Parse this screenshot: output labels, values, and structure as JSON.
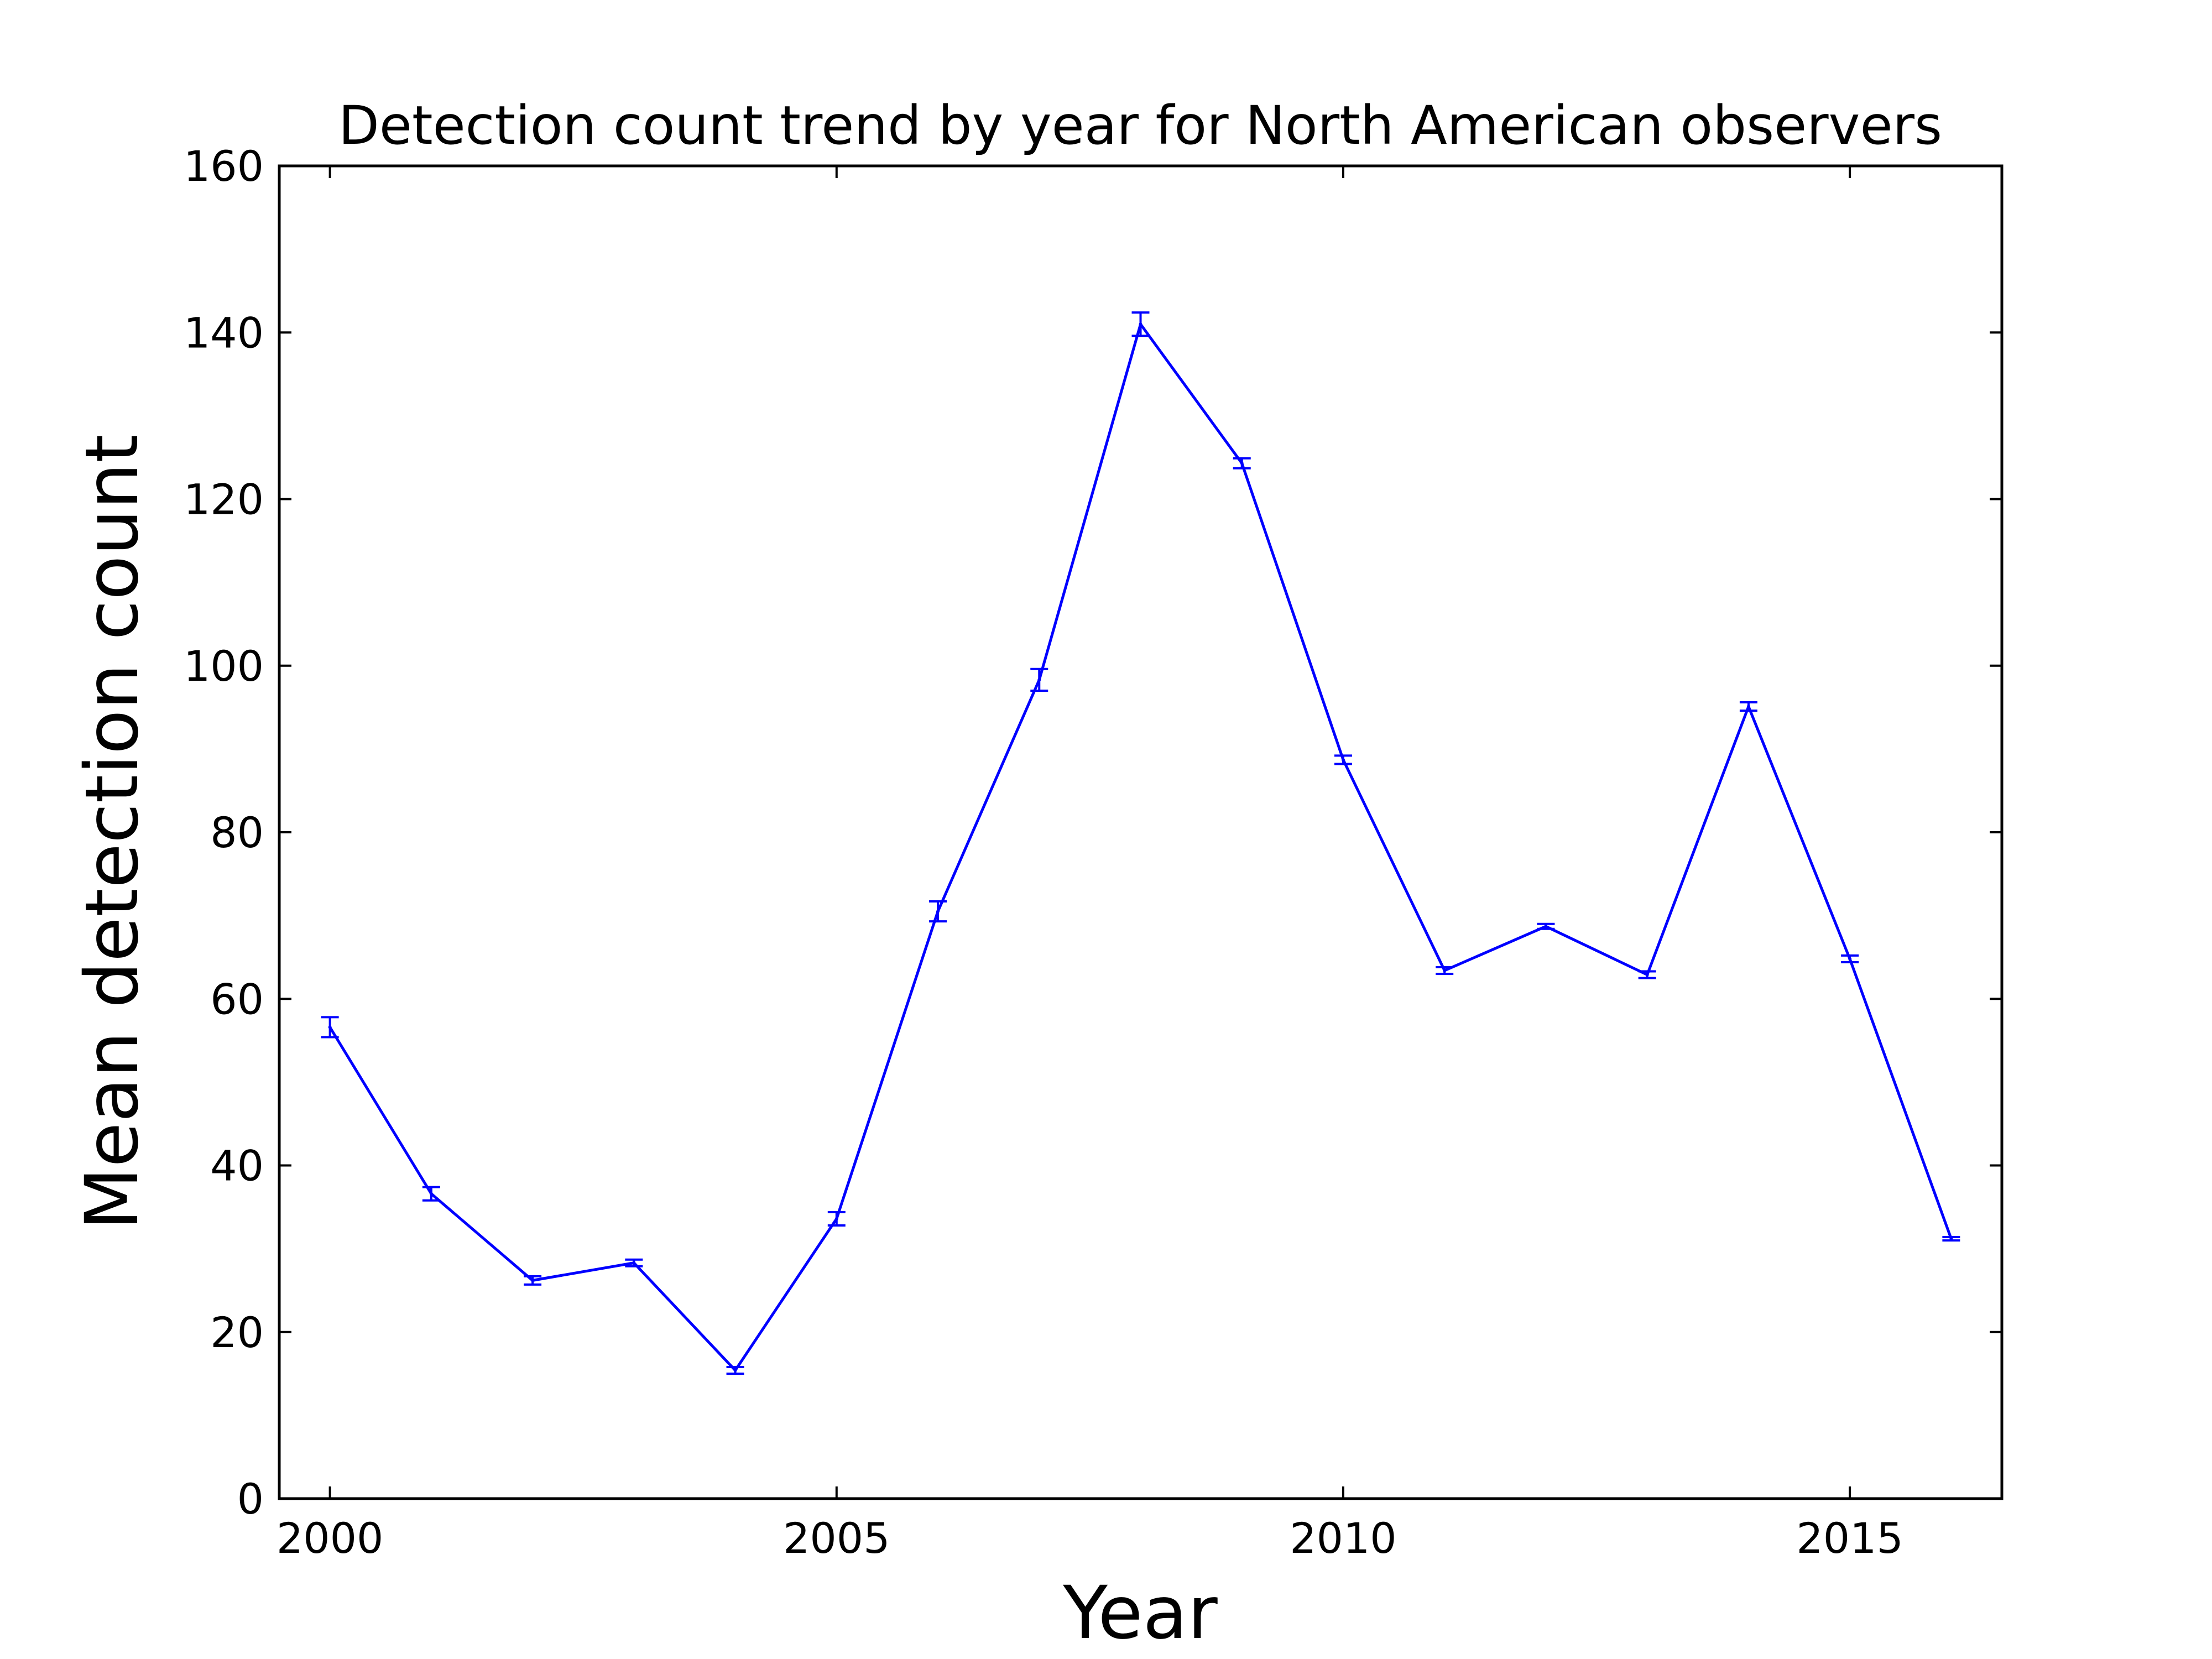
{
  "chart_data": {
    "type": "line",
    "title": "Detection count trend by year for North American observers",
    "xlabel": "Year",
    "ylabel": "Mean detection count",
    "xlim": [
      1999.5,
      2016.5
    ],
    "ylim": [
      0,
      160
    ],
    "x_ticks": [
      2000,
      2005,
      2010,
      2015
    ],
    "x_tick_labels": [
      "2000",
      "2005",
      "2010",
      "2015"
    ],
    "y_ticks": [
      0,
      20,
      40,
      60,
      80,
      100,
      120,
      140,
      160
    ],
    "y_tick_labels": [
      "0",
      "20",
      "40",
      "60",
      "80",
      "100",
      "120",
      "140",
      "160"
    ],
    "grid": false,
    "legend": "none",
    "line_color": "#0000ff",
    "series": [
      {
        "x": [
          2000,
          2001,
          2002,
          2003,
          2004,
          2005,
          2006,
          2007,
          2008,
          2009,
          2010,
          2011,
          2012,
          2013,
          2014,
          2015,
          2016
        ],
        "y": [
          56.6,
          36.6,
          26.2,
          28.3,
          15.4,
          33.6,
          70.5,
          98.3,
          141.0,
          124.3,
          88.7,
          63.4,
          68.7,
          62.9,
          95.1,
          64.8,
          31.2
        ],
        "yerr": [
          1.2,
          0.8,
          0.5,
          0.4,
          0.4,
          0.8,
          1.2,
          1.3,
          1.4,
          0.6,
          0.5,
          0.4,
          0.3,
          0.4,
          0.5,
          0.4,
          0.2
        ]
      }
    ]
  }
}
